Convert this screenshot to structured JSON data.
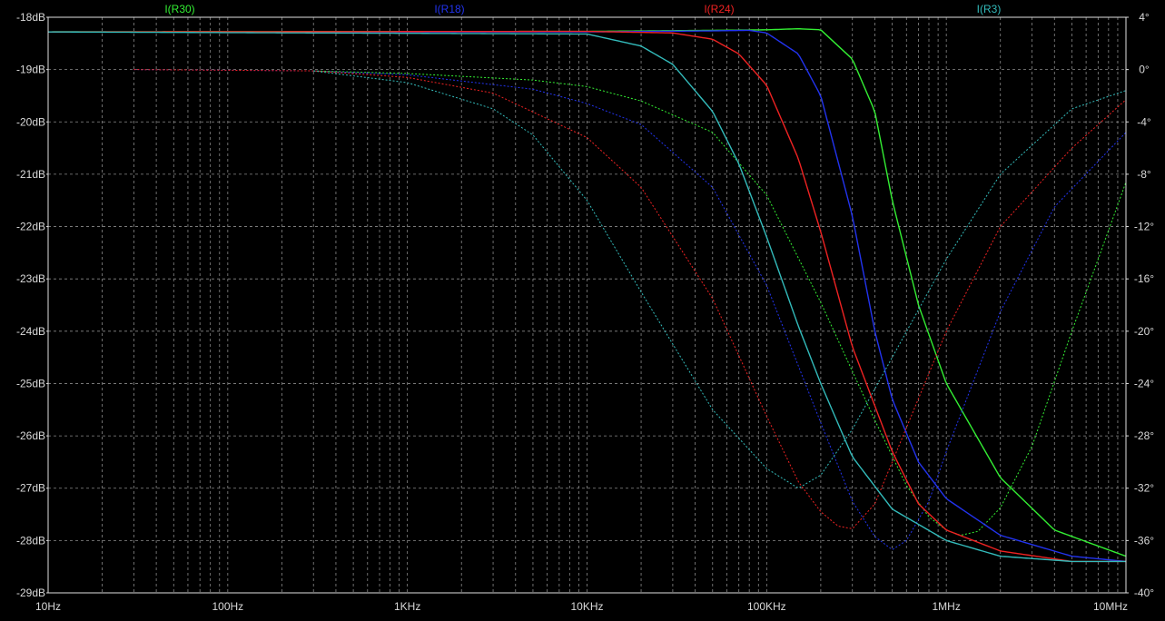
{
  "chart_data": {
    "type": "line",
    "title": "",
    "background": "#000000",
    "grid": true,
    "x_axis": {
      "scale": "log",
      "range_hz": [
        10,
        10000000
      ],
      "tick_labels": [
        "10Hz",
        "100Hz",
        "1KHz",
        "10KHz",
        "100KHz",
        "1MHz",
        "10MHz"
      ]
    },
    "y_axis_left": {
      "unit": "dB",
      "range": [
        -29,
        -18
      ],
      "tick_labels": [
        "-18dB",
        "-19dB",
        "-20dB",
        "-21dB",
        "-22dB",
        "-23dB",
        "-24dB",
        "-25dB",
        "-26dB",
        "-27dB",
        "-28dB",
        "-29dB"
      ]
    },
    "y_axis_right": {
      "unit": "degrees",
      "range": [
        -40,
        4
      ],
      "tick_labels": [
        "4°",
        "0°",
        "-4°",
        "-8°",
        "-12°",
        "-16°",
        "-20°",
        "-24°",
        "-28°",
        "-32°",
        "-36°",
        "-40°"
      ]
    },
    "line_styles": {
      "magnitude": "solid",
      "phase": "dotted"
    },
    "series": [
      {
        "name": "I(R30)",
        "color": "#33ee33",
        "magnitude_db": [
          [
            10,
            -18.28
          ],
          [
            10000,
            -18.27
          ],
          [
            50000,
            -18.25
          ],
          [
            100000,
            -18.24
          ],
          [
            150000,
            -18.22
          ],
          [
            200000,
            -18.24
          ],
          [
            300000,
            -18.8
          ],
          [
            400000,
            -19.8
          ],
          [
            500000,
            -21.5
          ],
          [
            700000,
            -23.5
          ],
          [
            1000000,
            -25.0
          ],
          [
            2000000,
            -26.8
          ],
          [
            4000000,
            -27.8
          ],
          [
            10000000,
            -28.3
          ]
        ],
        "phase_deg": [
          [
            300,
            -0.1
          ],
          [
            1000,
            -0.3
          ],
          [
            5000,
            -0.8
          ],
          [
            10000,
            -1.3
          ],
          [
            20000,
            -2.4
          ],
          [
            50000,
            -4.8
          ],
          [
            100000,
            -9.6
          ],
          [
            200000,
            -17.8
          ],
          [
            400000,
            -26.8
          ],
          [
            600000,
            -31.8
          ],
          [
            800000,
            -34.2
          ],
          [
            1000000,
            -35.2
          ],
          [
            1200000,
            -35.6
          ],
          [
            1500000,
            -35.3
          ],
          [
            2000000,
            -33.5
          ],
          [
            3000000,
            -28.8
          ],
          [
            5000000,
            -20
          ],
          [
            7000000,
            -14.5
          ],
          [
            10000000,
            -8.6
          ]
        ]
      },
      {
        "name": "I(R18)",
        "color": "#2233ee",
        "magnitude_db": [
          [
            10,
            -18.28
          ],
          [
            10000,
            -18.28
          ],
          [
            50000,
            -18.26
          ],
          [
            80000,
            -18.25
          ],
          [
            100000,
            -18.3
          ],
          [
            150000,
            -18.7
          ],
          [
            200000,
            -19.5
          ],
          [
            300000,
            -21.8
          ],
          [
            400000,
            -24
          ],
          [
            500000,
            -25.3
          ],
          [
            700000,
            -26.5
          ],
          [
            1000000,
            -27.2
          ],
          [
            2000000,
            -27.9
          ],
          [
            5000000,
            -28.3
          ],
          [
            10000000,
            -28.4
          ]
        ],
        "phase_deg": [
          [
            30,
            0
          ],
          [
            300,
            -0.1
          ],
          [
            1000,
            -0.4
          ],
          [
            5000,
            -1.5
          ],
          [
            10000,
            -2.6
          ],
          [
            20000,
            -4.2
          ],
          [
            50000,
            -9
          ],
          [
            100000,
            -16.5
          ],
          [
            200000,
            -27
          ],
          [
            300000,
            -33
          ],
          [
            400000,
            -35.7
          ],
          [
            500000,
            -36.7
          ],
          [
            600000,
            -36
          ],
          [
            800000,
            -33
          ],
          [
            1000000,
            -29.2
          ],
          [
            2000000,
            -18.5
          ],
          [
            4000000,
            -10.5
          ],
          [
            10000000,
            -4.8
          ]
        ]
      },
      {
        "name": "I(R24)",
        "color": "#ee2222",
        "magnitude_db": [
          [
            10,
            -18.28
          ],
          [
            10000,
            -18.27
          ],
          [
            30000,
            -18.3
          ],
          [
            50000,
            -18.42
          ],
          [
            70000,
            -18.7
          ],
          [
            100000,
            -19.3
          ],
          [
            150000,
            -20.7
          ],
          [
            200000,
            -22.1
          ],
          [
            300000,
            -24.3
          ],
          [
            500000,
            -26.3
          ],
          [
            700000,
            -27.3
          ],
          [
            1000000,
            -27.8
          ],
          [
            2000000,
            -28.2
          ],
          [
            5000000,
            -28.4
          ],
          [
            10000000,
            -28.4
          ]
        ],
        "phase_deg": [
          [
            30,
            0
          ],
          [
            300,
            -0.1
          ],
          [
            1000,
            -0.6
          ],
          [
            3000,
            -1.8
          ],
          [
            10000,
            -5.2
          ],
          [
            20000,
            -9
          ],
          [
            50000,
            -17.5
          ],
          [
            100000,
            -26.5
          ],
          [
            150000,
            -31.5
          ],
          [
            200000,
            -33.8
          ],
          [
            250000,
            -34.9
          ],
          [
            300000,
            -35.1
          ],
          [
            400000,
            -33.2
          ],
          [
            500000,
            -30
          ],
          [
            1000000,
            -20
          ],
          [
            2000000,
            -12
          ],
          [
            5000000,
            -6
          ],
          [
            10000000,
            -2.3
          ]
        ]
      },
      {
        "name": "I(R3)",
        "color": "#33bbbb",
        "magnitude_db": [
          [
            10,
            -18.28
          ],
          [
            10000,
            -18.32
          ],
          [
            20000,
            -18.55
          ],
          [
            30000,
            -18.9
          ],
          [
            50000,
            -19.8
          ],
          [
            70000,
            -20.8
          ],
          [
            100000,
            -22.2
          ],
          [
            150000,
            -23.9
          ],
          [
            200000,
            -25
          ],
          [
            300000,
            -26.4
          ],
          [
            500000,
            -27.4
          ],
          [
            1000000,
            -28
          ],
          [
            2000000,
            -28.3
          ],
          [
            5000000,
            -28.4
          ],
          [
            10000000,
            -28.4
          ]
        ],
        "phase_deg": [
          [
            300,
            -0.1
          ],
          [
            1000,
            -1
          ],
          [
            3000,
            -3
          ],
          [
            5000,
            -5
          ],
          [
            10000,
            -10
          ],
          [
            20000,
            -17
          ],
          [
            50000,
            -26
          ],
          [
            100000,
            -30.5
          ],
          [
            150000,
            -32
          ],
          [
            200000,
            -31
          ],
          [
            300000,
            -27.5
          ],
          [
            500000,
            -22
          ],
          [
            1000000,
            -14.5
          ],
          [
            2000000,
            -8
          ],
          [
            5000000,
            -3
          ],
          [
            10000000,
            -1.6
          ]
        ]
      }
    ]
  }
}
